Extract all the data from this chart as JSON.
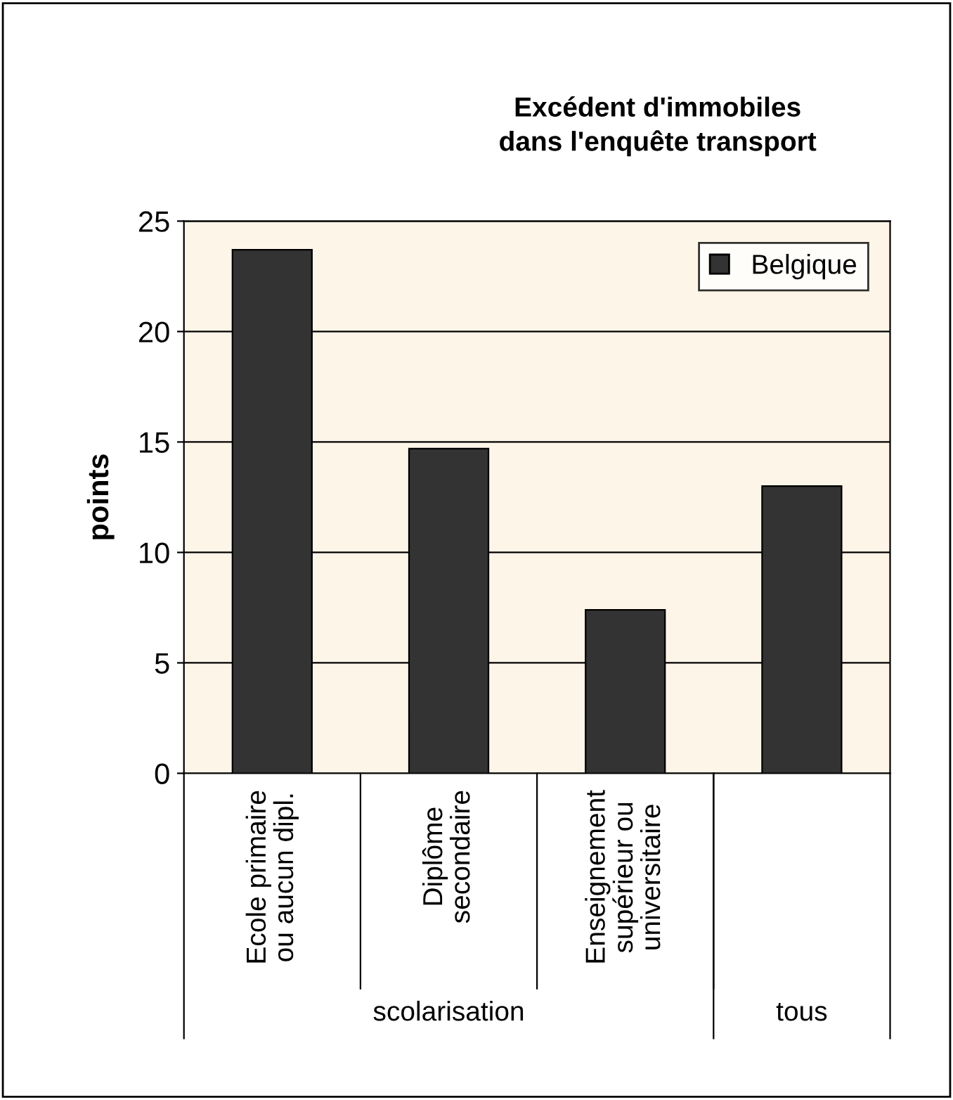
{
  "chart_data": {
    "type": "bar",
    "title": "Excédent d'immobiles\ndans l'enquête transport",
    "ylabel": "points",
    "categories": [
      "Ecole primaire\nou aucun dipl.",
      "Diplôme\nsecondaire",
      "Enseignement\nsupérieur ou\nuniversitaire",
      null
    ],
    "series": [
      {
        "name": "Belgique",
        "color": "#333333",
        "values": [
          23.7,
          14.7,
          7.4,
          13.0
        ]
      }
    ],
    "annotations": [
      "scolarisation",
      "tous"
    ],
    "ylim": [
      0,
      25
    ],
    "yticks": [
      0,
      5,
      10,
      15,
      20,
      25
    ],
    "grid": "y",
    "legend": "top right"
  }
}
